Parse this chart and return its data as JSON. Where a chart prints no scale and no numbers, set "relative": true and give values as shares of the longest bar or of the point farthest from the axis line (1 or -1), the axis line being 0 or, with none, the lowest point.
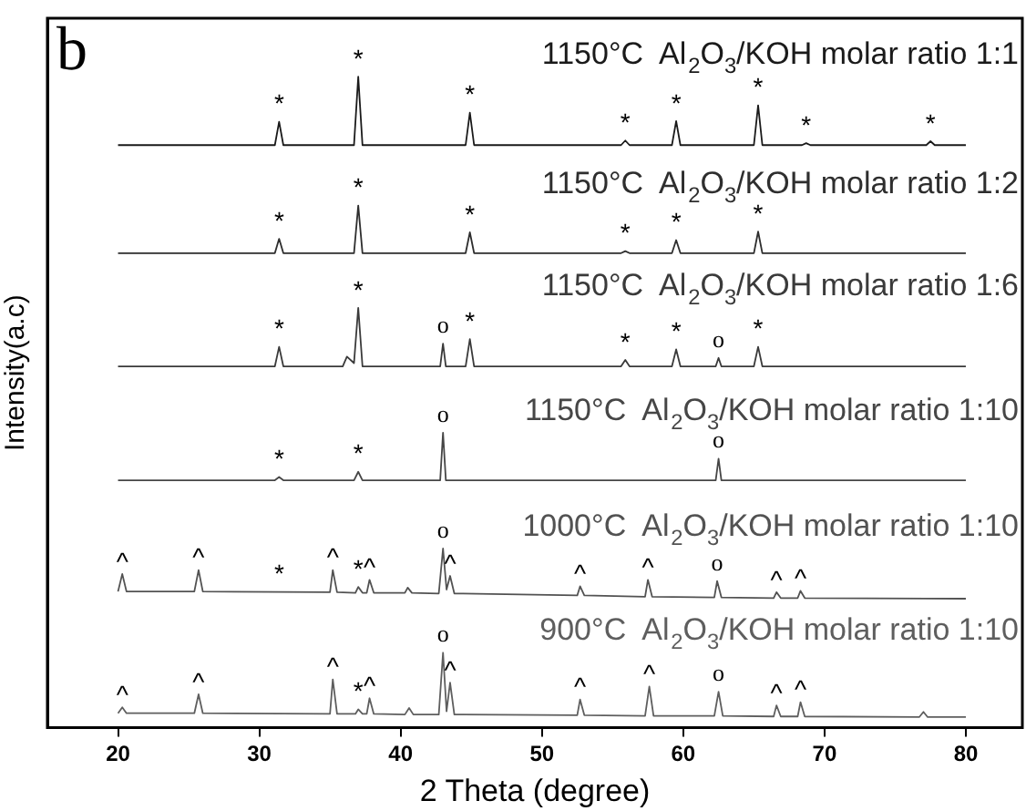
{
  "chart_data": {
    "type": "line",
    "relative": true,
    "xlabel": "2 Theta (degree)",
    "ylabel": "Intensity(a.c)",
    "xlim": [
      15,
      84
    ],
    "xticks": [
      20,
      30,
      40,
      50,
      60,
      70,
      80
    ],
    "legend": false,
    "grid": false,
    "marker": "none",
    "line_style": "solid",
    "tick_labels": "x",
    "series": [
      {
        "name": "1150°C  Al$_{2}$O$_{3}$/KOH molar ratio 1:1",
        "color": "#1a1a1a",
        "x": [
          20,
          31.1,
          31.4,
          31.7,
          36.7,
          37.0,
          37.3,
          44.6,
          44.9,
          45.2,
          55.6,
          55.9,
          56.2,
          59.2,
          59.5,
          59.8,
          65.0,
          65.3,
          65.6,
          68.4,
          68.7,
          69.0,
          77.2,
          77.5,
          77.8,
          80
        ],
        "values": [
          0.895,
          0.895,
          0.931,
          0.895,
          0.895,
          1.0,
          0.895,
          0.895,
          0.945,
          0.895,
          0.895,
          0.902,
          0.895,
          0.895,
          0.932,
          0.895,
          0.895,
          0.956,
          0.895,
          0.895,
          0.898,
          0.895,
          0.895,
          0.901,
          0.895,
          0.895
        ]
      },
      {
        "name": "1150°C  Al$_{2}$O$_{3}$/KOH molar ratio 1:2",
        "color": "#2e2e2e",
        "x": [
          20,
          31.1,
          31.4,
          31.7,
          36.7,
          37.0,
          37.3,
          44.6,
          44.9,
          45.2,
          55.6,
          55.9,
          56.2,
          59.2,
          59.5,
          59.8,
          65.0,
          65.3,
          65.6,
          80
        ],
        "values": [
          0.729,
          0.729,
          0.751,
          0.729,
          0.729,
          0.802,
          0.729,
          0.729,
          0.761,
          0.729,
          0.729,
          0.732,
          0.729,
          0.729,
          0.749,
          0.729,
          0.729,
          0.762,
          0.729,
          0.729
        ]
      },
      {
        "name": "1150°C  Al$_{2}$O$_{3}$/KOH molar ratio 1:6",
        "color": "#3a3a3a",
        "x": [
          20,
          31.1,
          31.4,
          31.7,
          35.9,
          36.2,
          36.7,
          37.0,
          37.3,
          42.8,
          43.0,
          43.2,
          44.6,
          44.9,
          45.2,
          55.6,
          55.9,
          56.2,
          59.2,
          59.5,
          59.8,
          62.3,
          62.5,
          62.7,
          65.0,
          65.3,
          65.6,
          80
        ],
        "values": [
          0.555,
          0.555,
          0.585,
          0.555,
          0.555,
          0.57,
          0.56,
          0.645,
          0.555,
          0.555,
          0.59,
          0.555,
          0.555,
          0.597,
          0.555,
          0.555,
          0.565,
          0.555,
          0.555,
          0.581,
          0.555,
          0.555,
          0.568,
          0.555,
          0.555,
          0.585,
          0.555,
          0.555
        ]
      },
      {
        "name": "1150°C  Al$_{2}$O$_{3}$/KOH molar ratio 1:10",
        "color": "#464646",
        "x": [
          20,
          31.1,
          31.4,
          31.7,
          36.7,
          37.0,
          37.3,
          42.8,
          43.0,
          43.2,
          62.3,
          62.5,
          62.7,
          80
        ],
        "values": [
          0.38,
          0.38,
          0.385,
          0.38,
          0.38,
          0.393,
          0.38,
          0.38,
          0.453,
          0.38,
          0.38,
          0.413,
          0.38,
          0.38
        ]
      },
      {
        "name": "1000°C  Al$_{2}$O$_{3}$/KOH molar ratio 1:10",
        "color": "#525252",
        "x": [
          20,
          20.3,
          20.6,
          25.4,
          25.7,
          26.0,
          35.0,
          35.2,
          35.5,
          36.8,
          37.0,
          37.3,
          37.6,
          37.8,
          38.1,
          40.3,
          40.5,
          40.8,
          42.7,
          43.0,
          43.25,
          43.5,
          43.8,
          52.5,
          52.7,
          53.0,
          57.3,
          57.5,
          57.8,
          62.2,
          62.4,
          62.7,
          66.4,
          66.6,
          66.9,
          68.1,
          68.3,
          68.6,
          80
        ],
        "values": [
          0.209,
          0.236,
          0.209,
          0.209,
          0.242,
          0.209,
          0.208,
          0.242,
          0.208,
          0.207,
          0.216,
          0.207,
          0.207,
          0.227,
          0.207,
          0.207,
          0.215,
          0.207,
          0.206,
          0.275,
          0.212,
          0.233,
          0.206,
          0.203,
          0.217,
          0.203,
          0.201,
          0.227,
          0.201,
          0.2,
          0.225,
          0.2,
          0.199,
          0.208,
          0.199,
          0.199,
          0.21,
          0.199,
          0.198
        ]
      },
      {
        "name": "900°C  Al$_{2}$O$_{3}$/KOH molar ratio 1:10",
        "color": "#5e5e5e",
        "x": [
          20,
          20.3,
          20.6,
          25.4,
          25.7,
          26.0,
          35.0,
          35.2,
          35.5,
          36.8,
          37.0,
          37.3,
          37.6,
          37.8,
          38.1,
          40.3,
          40.6,
          40.9,
          42.7,
          43.0,
          43.25,
          43.5,
          43.8,
          52.5,
          52.7,
          53.0,
          57.3,
          57.6,
          57.9,
          62.2,
          62.5,
          62.8,
          66.4,
          66.6,
          66.9,
          68.1,
          68.3,
          68.6,
          76.7,
          77.0,
          77.3,
          80
        ],
        "values": [
          0.022,
          0.031,
          0.022,
          0.022,
          0.051,
          0.022,
          0.021,
          0.074,
          0.021,
          0.021,
          0.028,
          0.021,
          0.021,
          0.045,
          0.021,
          0.02,
          0.03,
          0.02,
          0.02,
          0.115,
          0.025,
          0.069,
          0.02,
          0.019,
          0.043,
          0.019,
          0.018,
          0.063,
          0.018,
          0.018,
          0.055,
          0.018,
          0.017,
          0.034,
          0.017,
          0.017,
          0.039,
          0.017,
          0.016,
          0.024,
          0.016,
          0.016
        ]
      }
    ],
    "annotations": [
      "b",
      {
        "text": "*",
        "x": 31.4,
        "y": 0.931
      },
      {
        "text": "*",
        "x": 37.0,
        "y": 1.0
      },
      {
        "text": "*",
        "x": 44.9,
        "y": 0.945
      },
      {
        "text": "*",
        "x": 55.9,
        "y": 0.902
      },
      {
        "text": "*",
        "x": 59.5,
        "y": 0.932
      },
      {
        "text": "*",
        "x": 65.3,
        "y": 0.956
      },
      {
        "text": "*",
        "x": 68.7,
        "y": 0.898
      },
      {
        "text": "*",
        "x": 77.5,
        "y": 0.901
      },
      {
        "text": "*",
        "x": 31.4,
        "y": 0.751
      },
      {
        "text": "*",
        "x": 37.0,
        "y": 0.802
      },
      {
        "text": "*",
        "x": 44.9,
        "y": 0.761
      },
      {
        "text": "*",
        "x": 55.9,
        "y": 0.732
      },
      {
        "text": "*",
        "x": 59.5,
        "y": 0.749
      },
      {
        "text": "*",
        "x": 65.3,
        "y": 0.762
      },
      {
        "text": "*",
        "x": 31.4,
        "y": 0.585
      },
      {
        "text": "*",
        "x": 37.0,
        "y": 0.645
      },
      {
        "text": "o",
        "x": 43.0,
        "y": 0.59
      },
      {
        "text": "*",
        "x": 44.9,
        "y": 0.597
      },
      {
        "text": "*",
        "x": 55.9,
        "y": 0.565
      },
      {
        "text": "*",
        "x": 59.5,
        "y": 0.581
      },
      {
        "text": "o",
        "x": 62.5,
        "y": 0.568
      },
      {
        "text": "*",
        "x": 65.3,
        "y": 0.585
      },
      {
        "text": "*",
        "x": 31.4,
        "y": 0.385
      },
      {
        "text": "*",
        "x": 37.0,
        "y": 0.393
      },
      {
        "text": "o",
        "x": 43.0,
        "y": 0.453
      },
      {
        "text": "o",
        "x": 62.5,
        "y": 0.413
      },
      {
        "text": "^",
        "x": 20.3,
        "y": 0.236
      },
      {
        "text": "^",
        "x": 25.7,
        "y": 0.242
      },
      {
        "text": "*",
        "x": 31.4,
        "y": 0.209
      },
      {
        "text": "^",
        "x": 35.2,
        "y": 0.242
      },
      {
        "text": "*",
        "x": 37.0,
        "y": 0.216
      },
      {
        "text": "^",
        "x": 37.8,
        "y": 0.227
      },
      {
        "text": "o",
        "x": 43.0,
        "y": 0.275
      },
      {
        "text": "^",
        "x": 43.5,
        "y": 0.233
      },
      {
        "text": "^",
        "x": 52.7,
        "y": 0.217
      },
      {
        "text": "^",
        "x": 57.5,
        "y": 0.227
      },
      {
        "text": "o",
        "x": 62.4,
        "y": 0.225
      },
      {
        "text": "^",
        "x": 66.6,
        "y": 0.208
      },
      {
        "text": "^",
        "x": 68.3,
        "y": 0.21
      },
      {
        "text": "^",
        "x": 20.3,
        "y": 0.031
      },
      {
        "text": "^",
        "x": 25.7,
        "y": 0.051
      },
      {
        "text": "^",
        "x": 35.2,
        "y": 0.074
      },
      {
        "text": "*",
        "x": 37.0,
        "y": 0.028
      },
      {
        "text": "^",
        "x": 37.8,
        "y": 0.045
      },
      {
        "text": "o",
        "x": 43.0,
        "y": 0.115
      },
      {
        "text": "^",
        "x": 43.5,
        "y": 0.069
      },
      {
        "text": "^",
        "x": 52.7,
        "y": 0.043
      },
      {
        "text": "^",
        "x": 57.6,
        "y": 0.063
      },
      {
        "text": "o",
        "x": 62.5,
        "y": 0.055
      },
      {
        "text": "^",
        "x": 66.6,
        "y": 0.034
      },
      {
        "text": "^",
        "x": 68.3,
        "y": 0.039
      }
    ]
  }
}
